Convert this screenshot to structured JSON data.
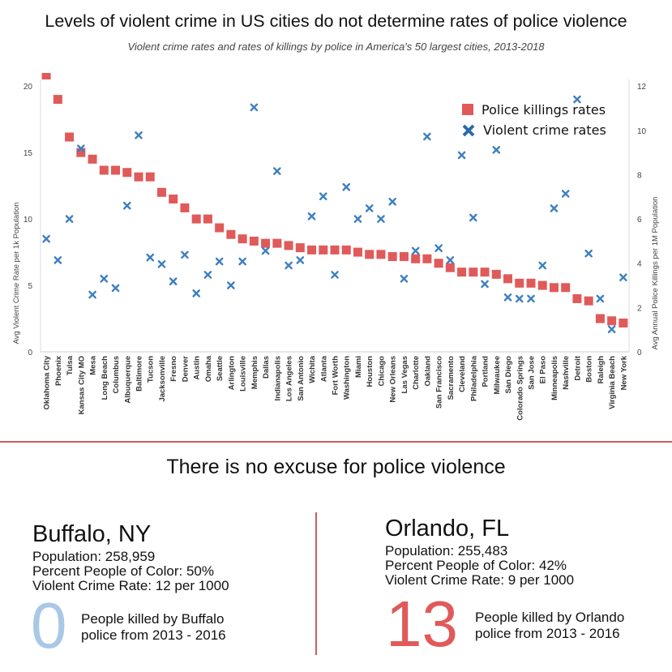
{
  "header": {
    "title": "Levels of violent crime in US cities do not determine rates of police violence",
    "subtitle": "Violent crime rates and rates of killings by police in America's 50 largest cities, 2013-2018"
  },
  "chart_data": {
    "type": "scatter",
    "categories": [
      "Oklahoma City",
      "Phoenix",
      "Tulsa",
      "Kansas City MO",
      "Mesa",
      "Long Beach",
      "Columbus",
      "Albuquerque",
      "Baltimore",
      "Tucson",
      "Jacksonville",
      "Fresno",
      "Denver",
      "Austin",
      "Omaha",
      "Seattle",
      "Arlington",
      "Louisville",
      "Memphis",
      "Dallas",
      "Indianapolis",
      "Los Angeles",
      "San Antonio",
      "Wichita",
      "Atlanta",
      "Fort Worth",
      "Washington",
      "Miami",
      "Houston",
      "Chicago",
      "New Orleans",
      "Las Vegas",
      "Charlotte",
      "Oakland",
      "San Francisco",
      "Sacramento",
      "Cleveland",
      "Philadelphia",
      "Portland",
      "Milwaukee",
      "San Diego",
      "Colorado Springs",
      "San Jose",
      "El Paso",
      "Minneapolis",
      "Nashville",
      "Detroit",
      "Boston",
      "Raleigh",
      "Virginia Beach",
      "New York"
    ],
    "series": [
      {
        "name": "Police killings rates",
        "axis": "right",
        "marker": "square",
        "color": "#e05a5a",
        "values": [
          12.5,
          11.4,
          9.7,
          9.0,
          8.7,
          8.2,
          8.2,
          8.1,
          7.9,
          7.9,
          7.2,
          6.9,
          6.5,
          6.0,
          6.0,
          5.6,
          5.3,
          5.1,
          5.0,
          4.9,
          4.9,
          4.8,
          4.7,
          4.6,
          4.6,
          4.6,
          4.6,
          4.5,
          4.4,
          4.4,
          4.3,
          4.3,
          4.2,
          4.2,
          4.0,
          3.8,
          3.6,
          3.6,
          3.6,
          3.5,
          3.3,
          3.1,
          3.1,
          3.0,
          2.9,
          2.9,
          2.4,
          2.3,
          1.5,
          1.4,
          1.3
        ]
      },
      {
        "name": "Violent crime rates",
        "axis": "left",
        "marker": "x",
        "color": "#3d7fc0",
        "values": [
          8.5,
          6.9,
          10.0,
          15.3,
          4.3,
          5.5,
          4.8,
          11.0,
          16.3,
          7.1,
          6.6,
          5.3,
          7.3,
          4.4,
          5.8,
          6.8,
          5.0,
          6.8,
          18.4,
          7.6,
          13.6,
          6.5,
          6.9,
          10.2,
          11.7,
          5.8,
          12.4,
          10.0,
          10.8,
          10.0,
          11.3,
          5.5,
          7.6,
          16.2,
          7.8,
          6.9,
          14.8,
          10.1,
          5.1,
          15.2,
          4.1,
          4.0,
          4.0,
          6.5,
          10.8,
          11.9,
          19.0,
          7.4,
          4.0,
          1.7,
          5.6
        ]
      }
    ],
    "ylabel": "Avg Violent Crime Rate per 1k Population",
    "ylabel_right": "Avg Annual Police Killings per 1M Population",
    "ylim": [
      0,
      20.5
    ],
    "ylim_right": [
      0,
      12.3
    ],
    "yticks": [
      0,
      5,
      10,
      15,
      20
    ],
    "yticks_right": [
      0,
      2,
      4,
      6,
      8,
      10,
      12
    ],
    "legend_position": "top-right",
    "grid": false
  },
  "bottom": {
    "tagline": "There is no excuse for police violence",
    "left": {
      "city": "Buffalo, NY",
      "population": "Population: 258,959",
      "poc": "Percent People of Color: 50%",
      "crime": "Violent Crime Rate: 12 per 1000",
      "killed_number": "0",
      "killed_line1": "People killed by Buffalo",
      "killed_line2": "police from 2013 - 2016",
      "number_color": "#a9c8e6"
    },
    "right": {
      "city": "Orlando, FL",
      "population": "Population: 255,483",
      "poc": "Percent People of Color: 42%",
      "crime": "Violent Crime Rate: 9 per 1000",
      "killed_number": "13",
      "killed_line1": "People killed by Orlando",
      "killed_line2": "police from 2013 - 2016",
      "number_color": "#e05a5a"
    }
  }
}
